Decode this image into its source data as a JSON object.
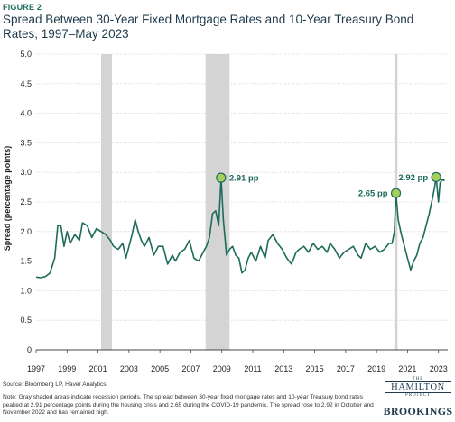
{
  "header": {
    "figure_label": "FIGURE 2",
    "title": "Spread Between 30-Year Fixed Mortgage Rates and 10-Year Treasury Bond Rates, 1997–May 2023"
  },
  "footer": {
    "source": "Source: Bloomberg LP, Haver Analytics.",
    "note": "Note: Gray shaded areas indicate recession periods. The spread between 30-year fixed mortgage rates and 10-year Treasury bond rates peaked at 2.91 percentage points during the housing crisis and 2.65 during the COVID-19 pandemic. The spread rose to 2.92 in October and November 2022 and has remained high."
  },
  "logos": {
    "hamilton_the": "THE",
    "hamilton_name": "HAMILTON",
    "hamilton_project": "PROJECT",
    "brookings": "BROOKINGS"
  },
  "colors": {
    "line": "#1d6b5a",
    "marker_fill": "#a6d05e",
    "marker_stroke": "#1d6b5a",
    "recession": "#d4d4d4",
    "grid": "#d6d6d6"
  },
  "chart_data": {
    "type": "line",
    "ylabel": "Spread (percentage points)",
    "xlabel": "",
    "ylim": [
      0,
      5
    ],
    "xlim": [
      1997,
      2023.6
    ],
    "y_ticks": [
      "0",
      "0.5",
      "1.0",
      "1.5",
      "2.0",
      "2.5",
      "3.0",
      "3.5",
      "4.0",
      "4.5",
      "5.0"
    ],
    "x_ticks": [
      "1997",
      "1999",
      "2001",
      "2003",
      "2005",
      "2007",
      "2009",
      "2011",
      "2013",
      "2015",
      "2017",
      "2019",
      "2021",
      "2023"
    ],
    "grid": "horizontal",
    "recessions": [
      [
        2001.2,
        2001.9
      ],
      [
        2007.95,
        2009.5
      ],
      [
        2020.15,
        2020.35
      ]
    ],
    "series": [
      {
        "x": [
          1997.0,
          1997.3,
          1997.6,
          1997.9,
          1998.2,
          1998.4,
          1998.6,
          1998.8,
          1999.0,
          1999.2,
          1999.5,
          1999.8,
          2000.0,
          2000.3,
          2000.6,
          2000.9,
          2001.2,
          2001.5,
          2001.8,
          2002.0,
          2002.3,
          2002.6,
          2002.8,
          2003.0,
          2003.2,
          2003.4,
          2003.6,
          2003.8,
          2004.0,
          2004.3,
          2004.6,
          2004.9,
          2005.2,
          2005.5,
          2005.8,
          2006.0,
          2006.3,
          2006.6,
          2006.9,
          2007.2,
          2007.5,
          2007.8,
          2008.0,
          2008.2,
          2008.4,
          2008.6,
          2008.8,
          2008.95,
          2009.1,
          2009.3,
          2009.5,
          2009.7,
          2009.9,
          2010.1,
          2010.3,
          2010.5,
          2010.7,
          2010.9,
          2011.2,
          2011.5,
          2011.8,
          2012.0,
          2012.3,
          2012.6,
          2012.9,
          2013.2,
          2013.5,
          2013.8,
          2014.0,
          2014.3,
          2014.6,
          2014.9,
          2015.2,
          2015.5,
          2015.8,
          2016.0,
          2016.3,
          2016.6,
          2016.9,
          2017.2,
          2017.5,
          2017.8,
          2018.0,
          2018.3,
          2018.6,
          2018.9,
          2019.2,
          2019.5,
          2019.8,
          2020.0,
          2020.15,
          2020.25,
          2020.4,
          2020.6,
          2020.8,
          2021.0,
          2021.2,
          2021.4,
          2021.6,
          2021.8,
          2022.0,
          2022.2,
          2022.4,
          2022.6,
          2022.75,
          2022.85,
          2023.0,
          2023.1,
          2023.25,
          2023.4
        ],
        "values": [
          1.23,
          1.22,
          1.24,
          1.3,
          1.55,
          2.1,
          2.1,
          1.75,
          2.0,
          1.8,
          1.95,
          1.85,
          2.15,
          2.1,
          1.9,
          2.05,
          2.0,
          1.95,
          1.85,
          1.75,
          1.7,
          1.8,
          1.55,
          1.75,
          1.95,
          2.2,
          2.0,
          1.85,
          1.75,
          1.9,
          1.6,
          1.75,
          1.75,
          1.45,
          1.6,
          1.5,
          1.65,
          1.7,
          1.85,
          1.55,
          1.5,
          1.65,
          1.75,
          1.9,
          2.3,
          2.35,
          2.1,
          2.91,
          2.2,
          1.6,
          1.7,
          1.75,
          1.6,
          1.55,
          1.3,
          1.35,
          1.55,
          1.65,
          1.5,
          1.75,
          1.55,
          1.85,
          1.95,
          1.8,
          1.7,
          1.55,
          1.45,
          1.65,
          1.7,
          1.75,
          1.65,
          1.8,
          1.7,
          1.75,
          1.65,
          1.8,
          1.7,
          1.55,
          1.65,
          1.7,
          1.75,
          1.6,
          1.55,
          1.8,
          1.7,
          1.75,
          1.65,
          1.7,
          1.8,
          1.8,
          2.0,
          2.65,
          2.2,
          1.95,
          1.75,
          1.55,
          1.35,
          1.5,
          1.6,
          1.8,
          1.9,
          2.1,
          2.3,
          2.55,
          2.75,
          2.92,
          2.5,
          2.82,
          2.88,
          2.86
        ]
      }
    ],
    "annotations": [
      {
        "x": 2008.95,
        "y": 2.91,
        "label": "2.91 pp",
        "side": "right"
      },
      {
        "x": 2020.25,
        "y": 2.65,
        "label": "2.65 pp",
        "side": "left"
      },
      {
        "x": 2022.85,
        "y": 2.92,
        "label": "2.92 pp",
        "side": "left"
      }
    ]
  }
}
